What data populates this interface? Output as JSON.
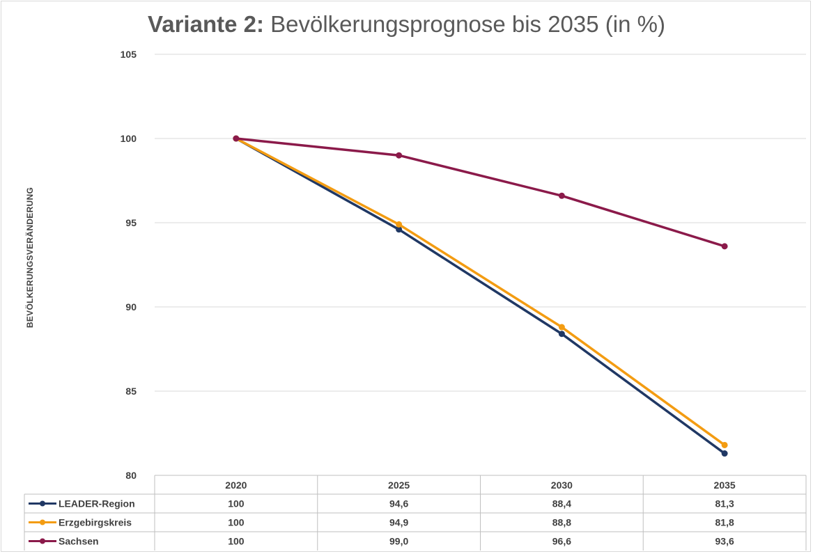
{
  "chart_data": {
    "type": "line",
    "title_bold": "Variante 2:",
    "title_rest": "Bevölkerungsprognose bis 2035 (in %)",
    "ylabel": "BEVÖLKERUNGSVERÄNDERUNG",
    "xlabel": "",
    "categories": [
      "2020",
      "2025",
      "2030",
      "2035"
    ],
    "ylim": [
      80,
      105
    ],
    "yticks": [
      "80",
      "85",
      "90",
      "95",
      "100",
      "105"
    ],
    "grid": true,
    "legend_placement": "data-table-left",
    "series": [
      {
        "name": "LEADER-Region",
        "color": "#203864",
        "values": [
          100,
          94.6,
          88.4,
          81.3
        ],
        "labels": [
          "100",
          "94,6",
          "88,4",
          "81,3"
        ]
      },
      {
        "name": "Erzgebirgskreis",
        "color": "#f39c12",
        "values": [
          100,
          94.9,
          88.8,
          81.8
        ],
        "labels": [
          "100",
          "94,9",
          "88,8",
          "81,8"
        ]
      },
      {
        "name": "Sachsen",
        "color": "#8b1a4a",
        "values": [
          100,
          99.0,
          96.6,
          93.6
        ],
        "labels": [
          "100",
          "99,0",
          "96,6",
          "93,6"
        ]
      }
    ]
  }
}
